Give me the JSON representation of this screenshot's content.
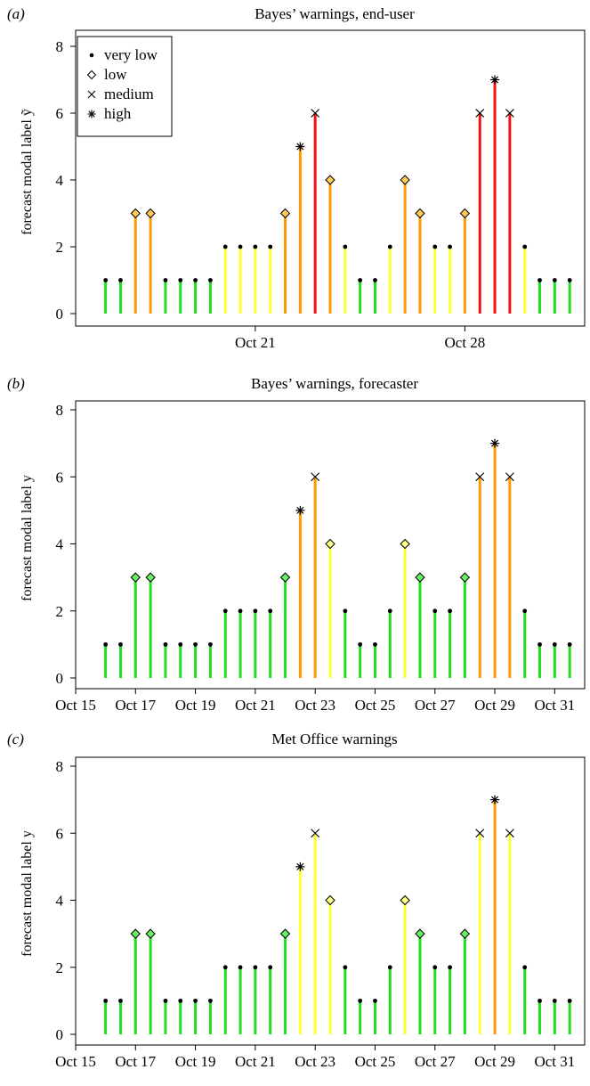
{
  "panel_tags": [
    "(a)",
    "(b)",
    "(c)"
  ],
  "legend": {
    "items": [
      {
        "symbol": "dot",
        "label": "very low"
      },
      {
        "symbol": "diamond",
        "label": "low"
      },
      {
        "symbol": "cross",
        "label": "medium"
      },
      {
        "symbol": "star",
        "label": "high"
      }
    ]
  },
  "colors": {
    "green": "#22dd22",
    "yellow": "#ffff33",
    "orange": "#ff9900",
    "red": "#ee1111"
  },
  "chart_data": [
    {
      "type": "bar",
      "title": "Bayes’ warnings, end-user",
      "ylabel": "forecast modal label ỹ",
      "xlabel": "",
      "ylim": [
        0,
        8
      ],
      "yticks": [
        0,
        2,
        4,
        6,
        8
      ],
      "x_day_range": [
        15.5,
        31.5
      ],
      "x_tick_days": [
        21,
        28
      ],
      "x_tick_labels": [
        "Oct 21",
        "Oct 28"
      ],
      "legend_position": "top-left",
      "series": [
        {
          "x": [
            16,
            16.5,
            17,
            17.5,
            18,
            18.5,
            19,
            19.5,
            20,
            20.5,
            21,
            21.5,
            22,
            22.5,
            23,
            23.5,
            24,
            24.5,
            25,
            25.5,
            26,
            26.5,
            27,
            27.5,
            28,
            28.5,
            29,
            29.5,
            30,
            30.5,
            31,
            31.5
          ],
          "values": [
            1,
            1,
            3,
            3,
            1,
            1,
            1,
            1,
            2,
            2,
            2,
            2,
            3,
            5,
            6,
            4,
            2,
            1,
            1,
            2,
            4,
            3,
            2,
            2,
            3,
            6,
            7,
            6,
            2,
            1,
            1,
            1
          ],
          "warning_colors": [
            "green",
            "green",
            "orange",
            "orange",
            "green",
            "green",
            "green",
            "green",
            "yellow",
            "yellow",
            "yellow",
            "yellow",
            "orange",
            "orange",
            "red",
            "orange",
            "yellow",
            "green",
            "green",
            "yellow",
            "orange",
            "orange",
            "yellow",
            "yellow",
            "orange",
            "red",
            "red",
            "red",
            "yellow",
            "green",
            "green",
            "green"
          ]
        }
      ]
    },
    {
      "type": "bar",
      "title": "Bayes’ warnings, forecaster",
      "ylabel": "forecast modal label y",
      "xlabel": "",
      "ylim": [
        0,
        8
      ],
      "yticks": [
        0,
        2,
        4,
        6,
        8
      ],
      "x_day_range": [
        15.5,
        31.5
      ],
      "x_tick_days": [
        15,
        17,
        19,
        21,
        23,
        25,
        27,
        29,
        31
      ],
      "x_tick_labels": [
        "Oct 15",
        "Oct 17",
        "Oct 19",
        "Oct 21",
        "Oct 23",
        "Oct 25",
        "Oct 27",
        "Oct 29",
        "Oct 31"
      ],
      "series": [
        {
          "x": [
            16,
            16.5,
            17,
            17.5,
            18,
            18.5,
            19,
            19.5,
            20,
            20.5,
            21,
            21.5,
            22,
            22.5,
            23,
            23.5,
            24,
            24.5,
            25,
            25.5,
            26,
            26.5,
            27,
            27.5,
            28,
            28.5,
            29,
            29.5,
            30,
            30.5,
            31,
            31.5
          ],
          "values": [
            1,
            1,
            3,
            3,
            1,
            1,
            1,
            1,
            2,
            2,
            2,
            2,
            3,
            5,
            6,
            4,
            2,
            1,
            1,
            2,
            4,
            3,
            2,
            2,
            3,
            6,
            7,
            6,
            2,
            1,
            1,
            1
          ],
          "warning_colors": [
            "green",
            "green",
            "green",
            "green",
            "green",
            "green",
            "green",
            "green",
            "green",
            "green",
            "green",
            "green",
            "green",
            "orange",
            "orange",
            "yellow",
            "green",
            "green",
            "green",
            "green",
            "yellow",
            "green",
            "green",
            "green",
            "green",
            "orange",
            "orange",
            "orange",
            "green",
            "green",
            "green",
            "green"
          ]
        }
      ]
    },
    {
      "type": "bar",
      "title": "Met Office warnings",
      "ylabel": "forecast modal label y",
      "xlabel": "",
      "ylim": [
        0,
        8
      ],
      "yticks": [
        0,
        2,
        4,
        6,
        8
      ],
      "x_day_range": [
        15.5,
        31.5
      ],
      "x_tick_days": [
        15,
        17,
        19,
        21,
        23,
        25,
        27,
        29,
        31
      ],
      "x_tick_labels": [
        "Oct 15",
        "Oct 17",
        "Oct 19",
        "Oct 21",
        "Oct 23",
        "Oct 25",
        "Oct 27",
        "Oct 29",
        "Oct 31"
      ],
      "series": [
        {
          "x": [
            16,
            16.5,
            17,
            17.5,
            18,
            18.5,
            19,
            19.5,
            20,
            20.5,
            21,
            21.5,
            22,
            22.5,
            23,
            23.5,
            24,
            24.5,
            25,
            25.5,
            26,
            26.5,
            27,
            27.5,
            28,
            28.5,
            29,
            29.5,
            30,
            30.5,
            31,
            31.5
          ],
          "values": [
            1,
            1,
            3,
            3,
            1,
            1,
            1,
            1,
            2,
            2,
            2,
            2,
            3,
            5,
            6,
            4,
            2,
            1,
            1,
            2,
            4,
            3,
            2,
            2,
            3,
            6,
            7,
            6,
            2,
            1,
            1,
            1
          ],
          "warning_colors": [
            "green",
            "green",
            "green",
            "green",
            "green",
            "green",
            "green",
            "green",
            "green",
            "green",
            "green",
            "green",
            "green",
            "yellow",
            "yellow",
            "yellow",
            "green",
            "green",
            "green",
            "green",
            "yellow",
            "green",
            "green",
            "green",
            "green",
            "yellow",
            "orange",
            "yellow",
            "green",
            "green",
            "green",
            "green"
          ]
        }
      ]
    }
  ]
}
